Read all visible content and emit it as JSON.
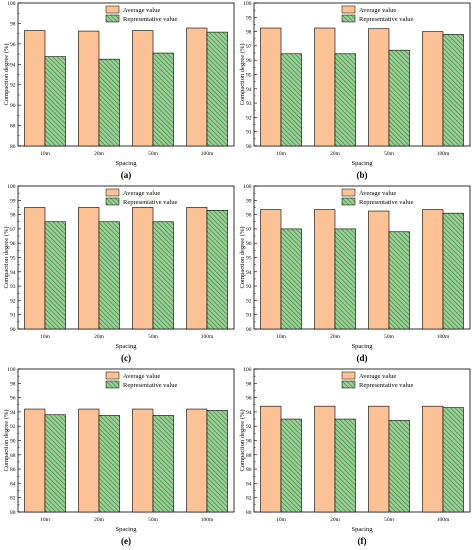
{
  "chart_data": [
    {
      "type": "bar",
      "panel_label": "(a)",
      "categories": [
        "10m",
        "20m",
        "50m",
        "100m"
      ],
      "series": [
        {
          "name": "Average value",
          "values": [
            97.3,
            97.25,
            97.3,
            97.55
          ]
        },
        {
          "name": "Representative value",
          "values": [
            94.75,
            94.5,
            95.1,
            97.15
          ]
        }
      ],
      "xlabel": "Spacing",
      "ylabel": "Compaction degree (%)",
      "ylim": [
        86,
        100
      ],
      "yticks": [
        86,
        88,
        90,
        92,
        94,
        96,
        98,
        100
      ],
      "legend": "top-right",
      "grid": false
    },
    {
      "type": "bar",
      "panel_label": "(b)",
      "categories": [
        "10m",
        "20m",
        "50m",
        "100m"
      ],
      "series": [
        {
          "name": "Average value",
          "values": [
            98.25,
            98.25,
            98.2,
            98.0
          ]
        },
        {
          "name": "Representative value",
          "values": [
            96.45,
            96.45,
            96.7,
            97.8
          ]
        }
      ],
      "xlabel": "Spacing",
      "ylabel": "Compaction degree (%)",
      "ylim": [
        90,
        100
      ],
      "yticks": [
        90,
        91,
        92,
        93,
        94,
        95,
        96,
        97,
        98,
        99,
        100
      ],
      "legend": "top-right",
      "grid": false
    },
    {
      "type": "bar",
      "panel_label": "(c)",
      "categories": [
        "10m",
        "20m",
        "50m",
        "100m"
      ],
      "series": [
        {
          "name": "Average value",
          "values": [
            98.5,
            98.5,
            98.5,
            98.5
          ]
        },
        {
          "name": "Representative value",
          "values": [
            97.5,
            97.5,
            97.5,
            98.3
          ]
        }
      ],
      "xlabel": "Spacing",
      "ylabel": "Compaction degree (%)",
      "ylim": [
        90,
        100
      ],
      "yticks": [
        90,
        91,
        92,
        93,
        94,
        95,
        96,
        97,
        98,
        99,
        100
      ],
      "legend": "top-right",
      "grid": false
    },
    {
      "type": "bar",
      "panel_label": "(d)",
      "categories": [
        "10m",
        "20m",
        "50m",
        "100m"
      ],
      "series": [
        {
          "name": "Average value",
          "values": [
            98.35,
            98.35,
            98.25,
            98.35
          ]
        },
        {
          "name": "Representative value",
          "values": [
            97.0,
            97.0,
            96.8,
            98.1
          ]
        }
      ],
      "xlabel": "Spacing",
      "ylabel": "Compaction degree (%)",
      "ylim": [
        90,
        100
      ],
      "yticks": [
        90,
        91,
        92,
        93,
        94,
        95,
        96,
        97,
        98,
        99,
        100
      ],
      "legend": "top-right",
      "grid": false
    },
    {
      "type": "bar",
      "panel_label": "(e)",
      "categories": [
        "10m",
        "20m",
        "50m",
        "100m"
      ],
      "series": [
        {
          "name": "Average value",
          "values": [
            94.4,
            94.4,
            94.4,
            94.4
          ]
        },
        {
          "name": "Representative value",
          "values": [
            93.6,
            93.5,
            93.5,
            94.2
          ]
        }
      ],
      "xlabel": "Spacing",
      "ylabel": "Compaction degree (%)",
      "ylim": [
        80,
        100
      ],
      "yticks": [
        80,
        82,
        84,
        86,
        88,
        90,
        92,
        94,
        96,
        98,
        100
      ],
      "legend": "top-right",
      "grid": false
    },
    {
      "type": "bar",
      "panel_label": "(f)",
      "categories": [
        "10m",
        "20m",
        "50m",
        "100m"
      ],
      "series": [
        {
          "name": "Average value",
          "values": [
            94.8,
            94.8,
            94.8,
            94.8
          ]
        },
        {
          "name": "Representative value",
          "values": [
            93.0,
            93.0,
            92.8,
            94.6
          ]
        }
      ],
      "xlabel": "Spacing",
      "ylabel": "Compaction degree (%)",
      "ylim": [
        80,
        100
      ],
      "yticks": [
        80,
        82,
        84,
        86,
        88,
        90,
        92,
        94,
        96,
        98,
        100
      ],
      "legend": "top-right",
      "grid": false
    }
  ],
  "colors": {
    "average_fill": "#FCC296",
    "representative_fill": "#9CCF95",
    "representative_hatch": "#2E7D3A",
    "axis": "#000000"
  }
}
